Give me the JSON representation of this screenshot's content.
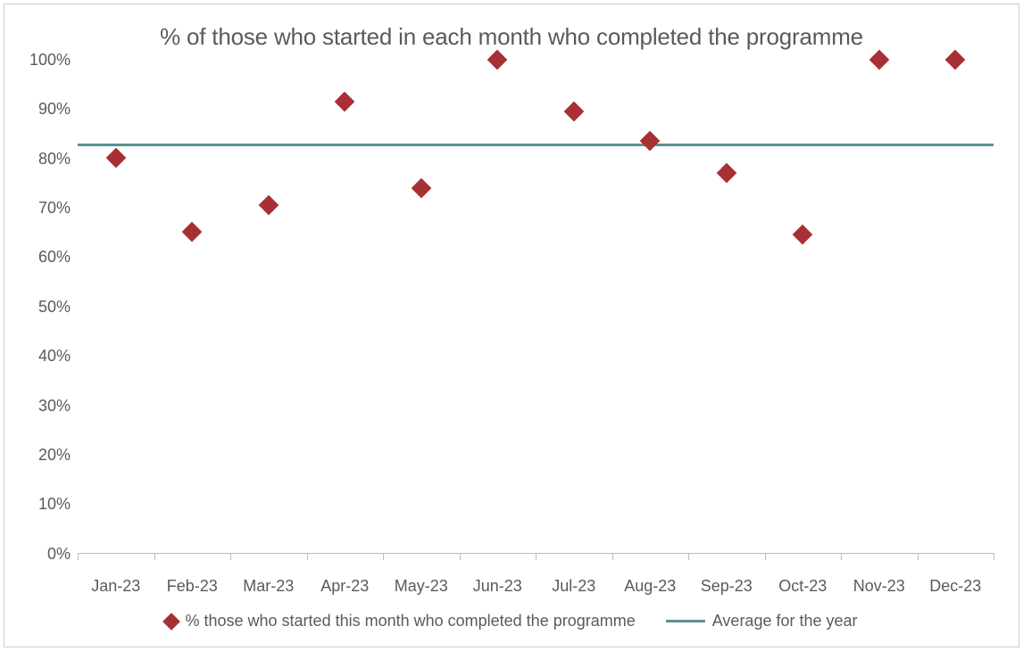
{
  "chart": {
    "type": "scatter",
    "title": "% of those who started in each month who completed the programme",
    "title_fontsize": 26,
    "title_color": "#5a5a5a",
    "background_color": "#ffffff",
    "border_color": "#cccccc",
    "axis_color": "#bdbdbd",
    "label_color": "#5a5a5a",
    "label_fontsize": 18,
    "ylim": [
      0,
      100
    ],
    "ytick_step": 10,
    "y_ticks": [
      "100%",
      "90%",
      "80%",
      "70%",
      "60%",
      "50%",
      "40%",
      "30%",
      "20%",
      "10%",
      "0%"
    ],
    "categories": [
      "Jan-23",
      "Feb-23",
      "Mar-23",
      "Apr-23",
      "May-23",
      "Jun-23",
      "Jul-23",
      "Aug-23",
      "Sep-23",
      "Oct-23",
      "Nov-23",
      "Dec-23"
    ],
    "series": {
      "name": "% those who started this month who completed the programme",
      "values": [
        80,
        65,
        70.5,
        91.5,
        74,
        100,
        89.5,
        83.5,
        77,
        64.5,
        100,
        100
      ],
      "marker_style": "diamond",
      "marker_size": 16,
      "marker_color": "#a82f33"
    },
    "average_line": {
      "name": "Average for the year",
      "value": 83,
      "color": "#5b9190",
      "line_width": 3
    }
  }
}
